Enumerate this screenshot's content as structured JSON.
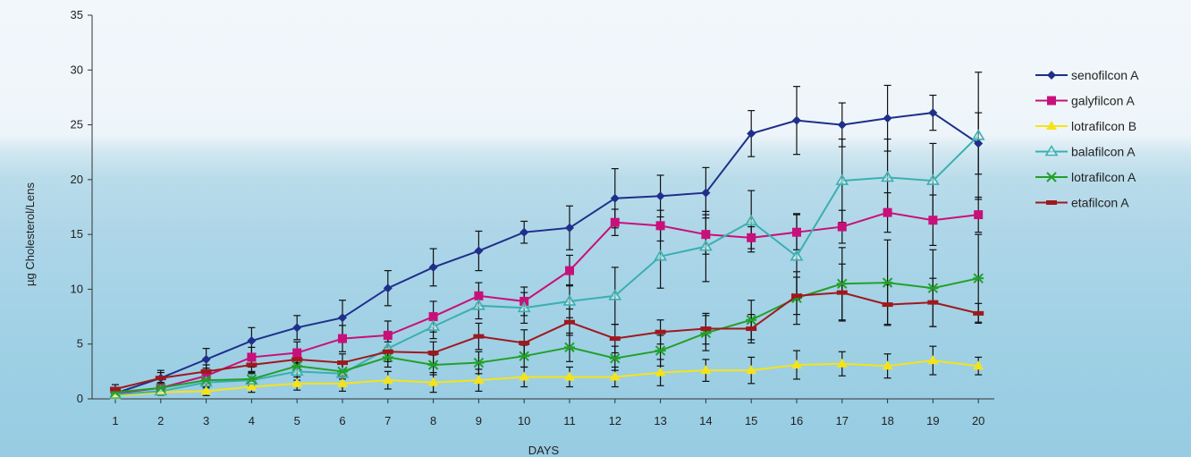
{
  "chart_data": {
    "type": "line",
    "xlabel": "DAYS",
    "ylabel": "µg Cholesterol/Lens",
    "ylim": [
      0,
      35
    ],
    "yticks": [
      0,
      5,
      10,
      15,
      20,
      25,
      30,
      35
    ],
    "x": [
      1,
      2,
      3,
      4,
      5,
      6,
      7,
      8,
      9,
      10,
      11,
      12,
      13,
      14,
      15,
      16,
      17,
      18,
      19,
      20
    ],
    "legend_position": "right",
    "grid": false,
    "series": [
      {
        "name": "senofilcon A",
        "color": "#1f2f8a",
        "marker": "diamond",
        "values": [
          0.5,
          1.9,
          3.6,
          5.3,
          6.5,
          7.4,
          10.1,
          12.0,
          13.5,
          15.2,
          15.6,
          18.3,
          18.5,
          18.8,
          24.2,
          25.4,
          25.0,
          25.6,
          26.1,
          23.3
        ],
        "errors": [
          0.4,
          0.7,
          1.0,
          1.2,
          1.1,
          1.6,
          1.6,
          1.7,
          1.8,
          1.0,
          2.0,
          2.7,
          1.9,
          2.3,
          2.1,
          3.1,
          2.0,
          3.0,
          1.6,
          2.8
        ]
      },
      {
        "name": "galyfilcon A",
        "color": "#c8107a",
        "marker": "square",
        "values": [
          0.5,
          1.0,
          2.1,
          3.8,
          4.2,
          5.5,
          5.8,
          7.5,
          9.4,
          8.9,
          11.7,
          16.1,
          15.8,
          15.0,
          14.7,
          15.2,
          15.7,
          17.0,
          16.3,
          16.8
        ],
        "errors": [
          0.3,
          0.5,
          0.7,
          0.9,
          1.0,
          1.2,
          1.3,
          1.4,
          1.2,
          1.3,
          1.4,
          1.2,
          1.4,
          1.8,
          1.0,
          1.6,
          1.5,
          1.8,
          2.3,
          1.6
        ]
      },
      {
        "name": "lotrafilcon B",
        "color": "#f5e31a",
        "marker": "triangle",
        "values": [
          0.3,
          0.6,
          0.7,
          1.1,
          1.4,
          1.4,
          1.7,
          1.5,
          1.7,
          2.0,
          2.0,
          2.0,
          2.4,
          2.6,
          2.6,
          3.1,
          3.2,
          3.0,
          3.5,
          3.0
        ],
        "errors": [
          0.2,
          0.3,
          0.4,
          0.5,
          0.6,
          0.7,
          0.8,
          0.9,
          1.0,
          0.9,
          0.9,
          0.9,
          1.2,
          1.0,
          1.2,
          1.3,
          1.1,
          1.1,
          1.3,
          0.8
        ]
      },
      {
        "name": "balafilcon A",
        "color": "#3ab0b0",
        "marker": "open-triangle",
        "values": [
          0.4,
          0.7,
          1.5,
          1.7,
          2.5,
          2.3,
          4.6,
          6.6,
          8.5,
          8.3,
          8.9,
          9.4,
          13.0,
          13.9,
          16.2,
          13.0,
          19.9,
          20.2,
          19.9,
          24.0
        ],
        "errors": [
          0.3,
          0.4,
          0.5,
          0.6,
          0.8,
          0.9,
          0.9,
          1.1,
          1.2,
          1.4,
          1.5,
          2.6,
          2.9,
          3.2,
          2.8,
          3.9,
          3.8,
          3.5,
          3.4,
          5.8
        ]
      },
      {
        "name": "lotrafilcon A",
        "color": "#22a02a",
        "marker": "star",
        "values": [
          0.6,
          1.0,
          1.7,
          1.8,
          3.0,
          2.5,
          3.8,
          3.1,
          3.3,
          3.9,
          4.7,
          3.7,
          4.4,
          6.0,
          7.2,
          9.2,
          10.5,
          10.6,
          10.1,
          11.0
        ],
        "errors": [
          0.3,
          0.4,
          0.5,
          0.6,
          0.8,
          0.7,
          0.9,
          0.9,
          1.0,
          1.0,
          1.3,
          1.1,
          1.4,
          1.6,
          1.8,
          2.4,
          3.3,
          3.9,
          3.5,
          4.0
        ]
      },
      {
        "name": "etafilcon A",
        "color": "#a0181e",
        "marker": "dash",
        "values": [
          0.9,
          1.9,
          2.5,
          3.1,
          3.6,
          3.3,
          4.3,
          4.2,
          5.7,
          5.1,
          7.0,
          5.5,
          6.1,
          6.4,
          6.4,
          9.4,
          9.7,
          8.6,
          8.8,
          7.8
        ],
        "errors": [
          0.4,
          0.5,
          0.6,
          0.6,
          0.7,
          0.8,
          0.9,
          1.0,
          1.2,
          1.2,
          1.2,
          1.3,
          1.1,
          1.4,
          1.3,
          1.7,
          2.6,
          1.8,
          2.2,
          0.9
        ]
      }
    ]
  }
}
